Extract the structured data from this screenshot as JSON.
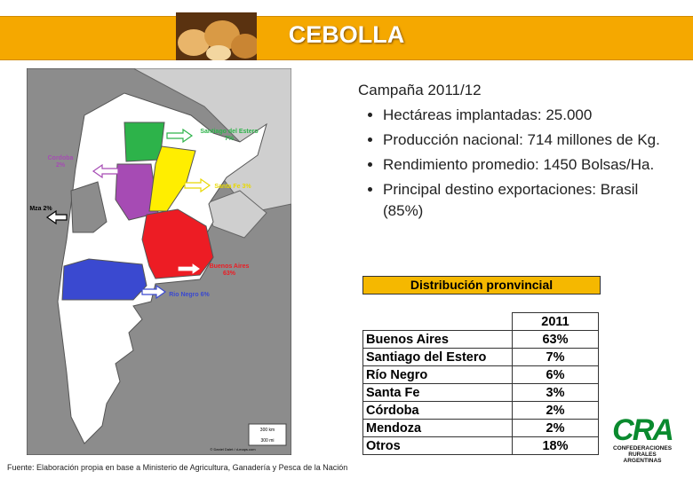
{
  "header": {
    "title": "CEBOLLA"
  },
  "summary": {
    "campaign": "Campaña 2011/12",
    "bullets": [
      "Hectáreas implantadas: 25.000",
      "Producción nacional: 714 millones de Kg.",
      "Rendimiento promedio: 1450 Bolsas/Ha.",
      "Principal destino exportaciones: Brasil (85%)"
    ]
  },
  "map": {
    "labels": [
      {
        "lines": [
          "Santiago del Estero",
          "7%"
        ]
      },
      {
        "lines": [
          "Cordoba",
          "2%"
        ]
      },
      {
        "lines": [
          "Santa Fe 3%"
        ]
      },
      {
        "lines": [
          "Mza 2%"
        ]
      },
      {
        "lines": [
          "Buenos Aires",
          "63%"
        ]
      },
      {
        "lines": [
          "Rio Negro 6%"
        ]
      }
    ],
    "scale": [
      "300 km",
      "300 mi"
    ],
    "credit": "© Daniel Dalet / d-maps.com"
  },
  "table": {
    "title": "Distribución pronvincial",
    "header": "2011",
    "rows": [
      [
        "Buenos Aires",
        "63%"
      ],
      [
        "Santiago del Estero",
        "7%"
      ],
      [
        "Río Negro",
        "6%"
      ],
      [
        "Santa Fe",
        "3%"
      ],
      [
        "Córdoba",
        "2%"
      ],
      [
        "Mendoza",
        "2%"
      ],
      [
        "Otros",
        "18%"
      ]
    ]
  },
  "source": "Fuente:  Elaboración propia en base a Ministerio de Agricultura, Ganadería y Pesca de la Nación",
  "logo": {
    "mark": "CRA",
    "text": [
      "CONFEDERACIONES",
      "RURALES",
      "ARGENTINAS"
    ]
  }
}
